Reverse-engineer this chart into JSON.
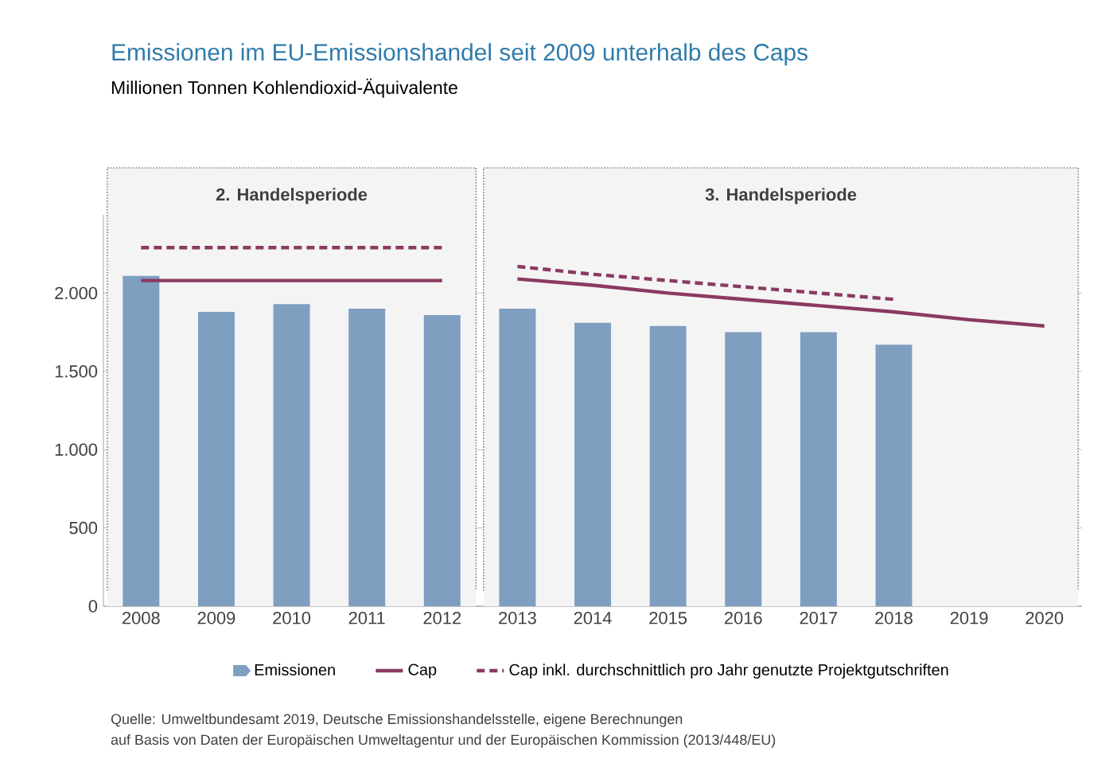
{
  "chart_data": {
    "type": "bar",
    "title": "Emissionen im EU-Emissionshandel seit 2009 unterhalb des Caps",
    "subtitle": "Millionen Tonnen Kohlendioxid-Äquivalente",
    "categories": [
      "2008",
      "2009",
      "2010",
      "2011",
      "2012",
      "2013",
      "2014",
      "2015",
      "2016",
      "2017",
      "2018",
      "2019",
      "2020"
    ],
    "series": [
      {
        "name": "Emissionen",
        "color": "#7f9fc0",
        "values": [
          2110,
          1880,
          1930,
          1900,
          1860,
          1900,
          1810,
          1790,
          1750,
          1750,
          1670,
          null,
          null
        ]
      },
      {
        "name": "Cap",
        "type": "line",
        "color": "#8b3a62",
        "values": [
          2080,
          2080,
          2080,
          2080,
          2080,
          null,
          null,
          null,
          null,
          null,
          null,
          null,
          null
        ]
      },
      {
        "type": "line",
        "color": "#8b3a62",
        "values": [
          null,
          null,
          null,
          null,
          null,
          2090,
          2050,
          2000,
          1960,
          1920,
          1880,
          1830,
          1790
        ]
      },
      {
        "name": "Cap inkl. durchschnittlich pro Jahr genutzte Projektgutschriften",
        "type": "line",
        "line_style": "dashed",
        "color": "#8b3a62",
        "values": [
          2290,
          2290,
          2290,
          2290,
          2290,
          null,
          null,
          null,
          null,
          null,
          null,
          null,
          null
        ]
      },
      {
        "type": "line",
        "line_style": "dashed",
        "color": "#8b3a62",
        "values": [
          null,
          null,
          null,
          null,
          null,
          2170,
          2120,
          2080,
          2040,
          2000,
          1960,
          null,
          null
        ]
      }
    ],
    "ylim": [
      0,
      2500
    ],
    "yticks": [
      0,
      500,
      {
        "value": 1000,
        "label": "1.000"
      },
      {
        "value": 1500,
        "label": "1.500"
      },
      {
        "value": 2000,
        "label": "2.000"
      }
    ],
    "grid": "y",
    "legend": "bottom",
    "bands": [
      {
        "axis": "x",
        "from": "2008",
        "to": "2012",
        "label": "2. Handelsperiode",
        "color": "#f4f4f4"
      },
      {
        "axis": "x",
        "from": "2013",
        "to": "2020",
        "label": "3. Handelsperiode",
        "color": "#f4f4f4"
      }
    ],
    "annotations": [
      "Quelle: Umweltbundesamt 2019, Deutsche Emissionshandelsstelle, eigene Berechnungen",
      "auf Basis von Daten der Europäischen Umweltagentur und der Europäischen Kommission (2013/448/EU)"
    ]
  }
}
